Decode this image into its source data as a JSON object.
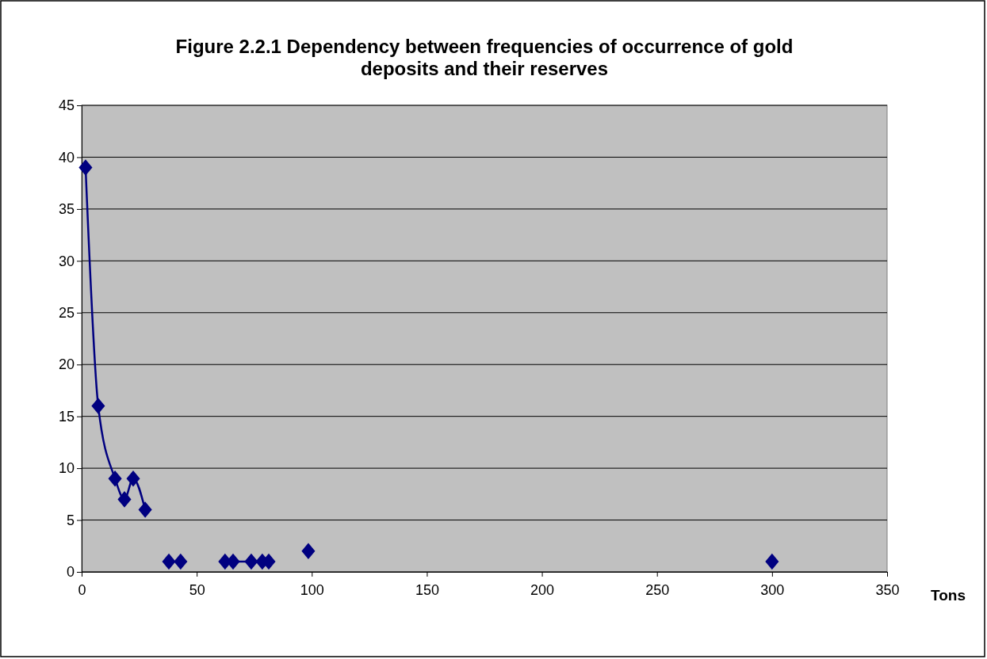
{
  "chart_data": {
    "type": "scatter",
    "title": "Figure 2.2.1 Dependency between frequencies of occurrence of gold deposits and their reserves",
    "xlabel": "Tons",
    "series": [
      {
        "type": "line",
        "color": "#000080",
        "x": [
          1.7,
          7.2,
          14.5,
          18.6,
          22.4,
          27.6
        ],
        "values": [
          39,
          16,
          9,
          7,
          9,
          6
        ]
      },
      {
        "color": "#000080",
        "x": [
          37.9,
          43
        ],
        "values": [
          1,
          1
        ]
      },
      {
        "type": "line",
        "color": "#000080",
        "x": [
          62.3,
          65.8,
          73.7,
          78.5,
          81.3
        ],
        "values": [
          1,
          1,
          1,
          1,
          1
        ]
      },
      {
        "type": "line",
        "color": "#000080",
        "x": [
          98.5
        ],
        "values": [
          2
        ]
      },
      {
        "type": "line",
        "color": "#000080",
        "x": [
          300
        ],
        "values": [
          1
        ]
      }
    ],
    "xlim": [
      0,
      350
    ],
    "xticks": [
      0,
      50,
      100,
      150,
      200,
      250,
      300,
      350
    ],
    "ylim": [
      0,
      45
    ],
    "yticks": [
      0,
      5,
      10,
      15,
      20,
      25,
      30,
      35,
      40,
      45
    ],
    "grid": "y",
    "marker": "diamond",
    "line_style": "solid"
  }
}
